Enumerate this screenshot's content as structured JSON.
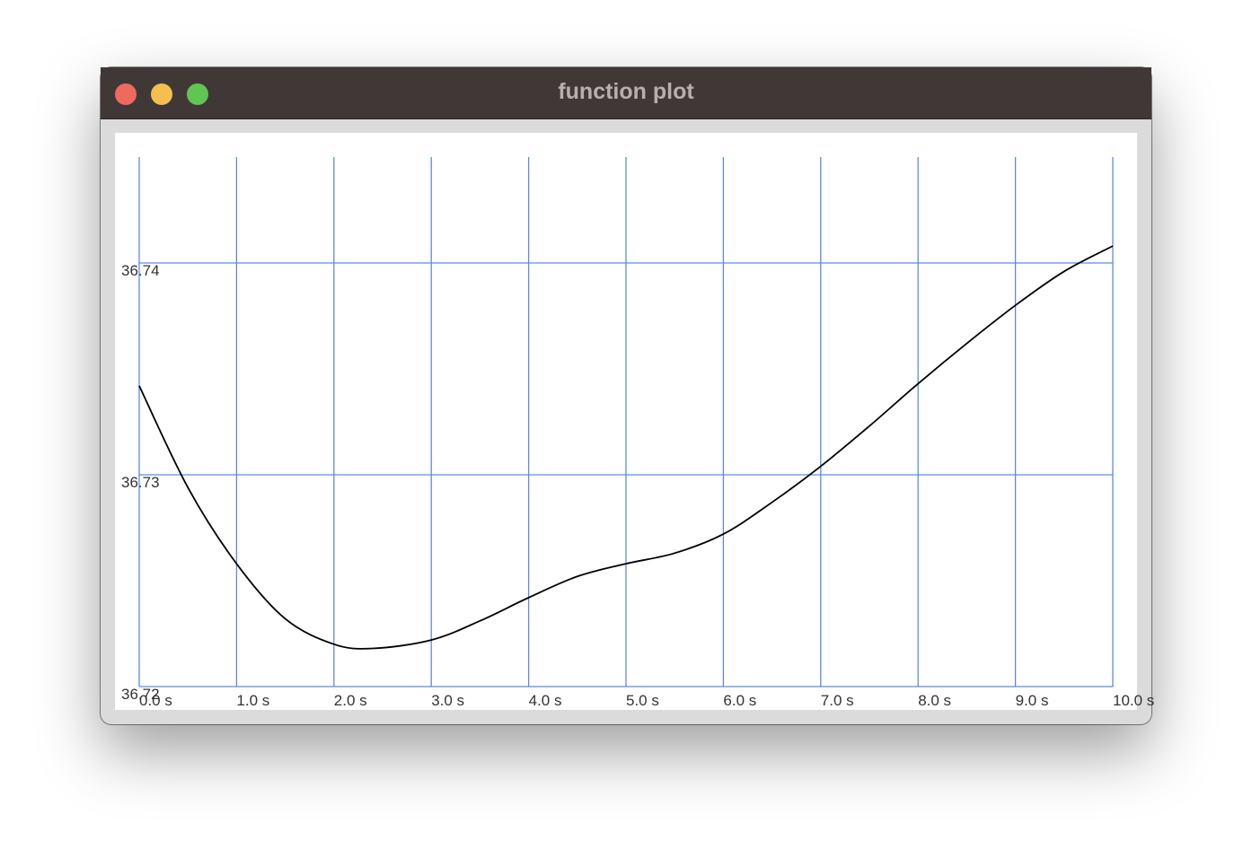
{
  "window": {
    "title": "function plot",
    "controls": [
      "close",
      "minimize",
      "zoom"
    ]
  },
  "colors": {
    "titlebar": "#403837",
    "grid": "#5b8ce0",
    "curve": "#000000",
    "plot_background": "#ffffff",
    "window_background": "#dcdbdc",
    "close": "#ee6a5e",
    "minimize": "#f5bf4f",
    "zoom": "#61c554"
  },
  "chart_data": {
    "type": "line",
    "title": "",
    "xlabel": "",
    "ylabel": "",
    "xlim": [
      0,
      10
    ],
    "ylim": [
      36.72,
      36.745
    ],
    "grid": true,
    "x_tick_values": [
      0,
      1,
      2,
      3,
      4,
      5,
      6,
      7,
      8,
      9,
      10
    ],
    "x_tick_labels": [
      "0.0 s",
      "1.0 s",
      "2.0 s",
      "3.0 s",
      "4.0 s",
      "5.0 s",
      "6.0 s",
      "7.0 s",
      "8.0 s",
      "9.0 s",
      "10.0 s"
    ],
    "y_tick_values": [
      36.72,
      36.73,
      36.74
    ],
    "y_tick_labels": [
      "36.72",
      "36.73",
      "36.74"
    ],
    "series": [
      {
        "x": [
          0,
          0.5,
          1.0,
          1.5,
          2.0,
          2.4,
          3.0,
          3.5,
          4.0,
          4.5,
          5.0,
          5.5,
          6.0,
          6.5,
          7.0,
          7.5,
          8.0,
          8.5,
          9.0,
          9.5,
          10.0
        ],
        "y": [
          36.7342,
          36.7294,
          36.7258,
          36.7232,
          36.722,
          36.7218,
          36.7222,
          36.7231,
          36.7242,
          36.7252,
          36.7258,
          36.7263,
          36.7272,
          36.7287,
          36.7304,
          36.7323,
          36.7343,
          36.7362,
          36.738,
          36.7396,
          36.7408
        ]
      }
    ]
  }
}
